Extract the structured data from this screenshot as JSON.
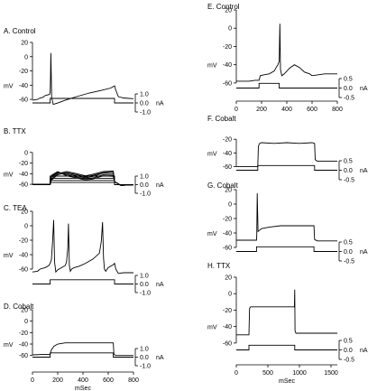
{
  "chart_data": [
    {
      "id": "A",
      "type": "line",
      "title": "A. Control",
      "xlim": [
        0,
        800
      ],
      "ylim": [
        -70,
        20
      ],
      "ylabel": "mV",
      "yticks": [
        20,
        0,
        -20,
        -40,
        -60
      ],
      "yticklabels": [
        "20",
        "0",
        "-20",
        "-40",
        "-60"
      ],
      "series": [
        {
          "x": [
            0,
            40,
            60,
            85,
            95,
            110,
            135,
            140,
            143,
            146,
            152,
            165,
            200,
            260,
            350,
            450,
            550,
            620,
            650,
            660,
            680,
            720,
            800
          ],
          "y": [
            -61,
            -60,
            -58,
            -57,
            -55,
            -54,
            -53,
            -50,
            -30,
            5,
            -58,
            -67,
            -65,
            -61,
            -56,
            -51,
            -47,
            -44,
            -41,
            -47,
            -56,
            -58,
            -59
          ]
        }
      ],
      "current": {
        "ticklabels": [
          "1.0",
          "0.0",
          "nA",
          "-1.0"
        ],
        "pulse": [
          140,
          650
        ],
        "level": 0.5
      }
    },
    {
      "id": "B",
      "type": "line",
      "title": "B. TTX",
      "xlim": [
        0,
        800
      ],
      "ylim": [
        -70,
        20
      ],
      "ylabel": "mV",
      "yticks": [
        0,
        -20,
        -40,
        -60
      ],
      "yticklabels": [
        "0",
        "-20",
        "-40",
        "-60"
      ],
      "series": [
        {
          "x": [
            0,
            140,
            150,
            200,
            270,
            350,
            420,
            480,
            560,
            640,
            650,
            700,
            800
          ],
          "y": [
            -60,
            -60,
            -52,
            -42,
            -38,
            -42,
            -46,
            -43,
            -38,
            -37,
            -55,
            -62,
            -61
          ]
        },
        {
          "x": [
            0,
            140,
            150,
            200,
            270,
            350,
            420,
            480,
            560,
            640,
            650,
            700,
            800
          ],
          "y": [
            -60,
            -60,
            -50,
            -40,
            -36,
            -40,
            -44,
            -41,
            -36,
            -35,
            -55,
            -62,
            -61
          ]
        },
        {
          "x": [
            0,
            140,
            150,
            200,
            270,
            350,
            420,
            480,
            560,
            640,
            650,
            700,
            800
          ],
          "y": [
            -60,
            -60,
            -47,
            -38,
            -40,
            -44,
            -48,
            -45,
            -39,
            -40,
            -55,
            -62,
            -61
          ]
        },
        {
          "x": [
            0,
            140,
            150,
            200,
            270,
            350,
            420,
            480,
            560,
            640,
            650,
            700,
            800
          ],
          "y": [
            -60,
            -60,
            -45,
            -37,
            -42,
            -46,
            -50,
            -48,
            -42,
            -43,
            -55,
            -62,
            -61
          ]
        },
        {
          "x": [
            0,
            140,
            150,
            200,
            270,
            350,
            420,
            480,
            560,
            640,
            650,
            700,
            800
          ],
          "y": [
            -60,
            -60,
            -43,
            -36,
            -44,
            -48,
            -52,
            -50,
            -44,
            -45,
            -55,
            -62,
            -61
          ]
        }
      ],
      "current": {
        "ticklabels": [
          "1.0",
          "0.0",
          "nA",
          "-1.0"
        ],
        "pulse": [
          140,
          650
        ],
        "levels": [
          0.25,
          0.5,
          0.75,
          1.0
        ]
      }
    },
    {
      "id": "C",
      "type": "line",
      "title": "C. TEA",
      "xlim": [
        0,
        800
      ],
      "ylim": [
        -70,
        20
      ],
      "ylabel": "mV",
      "yticks": [
        20,
        0,
        -20,
        -40,
        -60
      ],
      "yticklabels": [
        "20",
        "0",
        "-20",
        "-40",
        "-60"
      ],
      "series": [
        {
          "x": [
            0,
            40,
            60,
            100,
            130,
            140,
            150,
            160,
            168,
            175,
            185,
            200,
            230,
            260,
            270,
            280,
            285,
            292,
            300,
            310,
            330,
            370,
            420,
            480,
            530,
            545,
            555,
            563,
            570,
            580,
            600,
            640,
            650,
            660,
            680,
            720,
            800
          ],
          "y": [
            -64,
            -63,
            -60,
            -58,
            -55,
            -52,
            -47,
            -20,
            8,
            -50,
            -64,
            -61,
            -58,
            -55,
            -50,
            -30,
            3,
            -55,
            -63,
            -60,
            -58,
            -56,
            -52,
            -46,
            -38,
            -22,
            5,
            -45,
            -60,
            -63,
            -58,
            -54,
            -52,
            -60,
            -66,
            -65,
            -65
          ]
        }
      ],
      "current": {
        "ticklabels": [
          "1.0",
          "0.0",
          "nA",
          "-1.0"
        ],
        "pulse": [
          140,
          650
        ],
        "level": 0.5
      }
    },
    {
      "id": "D",
      "type": "line",
      "title": "D. Cobalt",
      "xlim": [
        0,
        800
      ],
      "ylim": [
        -70,
        20
      ],
      "ylabel": "mV",
      "yticks": [
        20,
        0,
        -20,
        -40,
        -60
      ],
      "yticklabels": [
        "20",
        "0",
        "-20",
        "-40",
        "-60"
      ],
      "xticks": [
        0,
        200,
        400,
        600,
        800
      ],
      "xticklabels": [
        "0",
        "200",
        "400",
        "600",
        "800"
      ],
      "xlabel": "mSec",
      "series": [
        {
          "x": [
            0,
            100,
            140,
            150,
            170,
            200,
            260,
            350,
            450,
            550,
            630,
            640,
            645,
            660,
            700,
            800
          ],
          "y": [
            -59,
            -58,
            -58,
            -50,
            -44,
            -40,
            -38,
            -38,
            -38,
            -38,
            -38,
            -38,
            -58,
            -60,
            -60,
            -60
          ]
        }
      ],
      "current": {
        "ticklabels": [
          "1.0",
          "0.0",
          "nA",
          "-1.0"
        ],
        "pulse": [
          140,
          640
        ],
        "level": 0.5
      }
    },
    {
      "id": "E",
      "type": "line",
      "title": "E. Control",
      "xlim": [
        0,
        800
      ],
      "ylim": [
        -70,
        20
      ],
      "ylabel": "mV",
      "yticks": [
        20,
        0,
        -20,
        -40,
        -60
      ],
      "yticklabels": [
        "20",
        "0",
        "-20",
        "-40",
        "-60"
      ],
      "xticks": [
        0,
        200,
        400,
        600,
        800
      ],
      "xticklabels": [
        "0",
        "200",
        "400",
        "600",
        "800"
      ],
      "series": [
        {
          "x": [
            0,
            50,
            100,
            150,
            180,
            190,
            220,
            260,
            300,
            320,
            330,
            340,
            345,
            350,
            360,
            380,
            420,
            460,
            500,
            540,
            580,
            600,
            650,
            700,
            800
          ],
          "y": [
            -58,
            -58,
            -58,
            -57,
            -57,
            -52,
            -51,
            -50,
            -47,
            -42,
            -40,
            -36,
            5,
            -45,
            -52,
            -50,
            -44,
            -40,
            -43,
            -48,
            -50,
            -52,
            -51,
            -50,
            -50
          ]
        }
      ],
      "current": {
        "ticklabels": [
          "0.5",
          "0.0",
          "nA",
          "-0.5"
        ],
        "pulse": [
          180,
          340
        ],
        "level": 0.25
      }
    },
    {
      "id": "F",
      "type": "line",
      "title": "F. Cobalt",
      "xlim": [
        0,
        800
      ],
      "ylim": [
        -70,
        20
      ],
      "ylabel": "mV",
      "yticks": [
        -20,
        -40,
        -60
      ],
      "yticklabels": [
        "-20",
        "-40",
        "-60"
      ],
      "series": [
        {
          "x": [
            0,
            100,
            170,
            175,
            185,
            200,
            300,
            400,
            500,
            600,
            620,
            625,
            640,
            700,
            800
          ],
          "y": [
            -60,
            -60,
            -60,
            -30,
            -26,
            -25,
            -26,
            -25,
            -26,
            -25,
            -26,
            -50,
            -52,
            -52,
            -52
          ]
        }
      ],
      "current": {
        "ticklabels": [
          "0.5",
          "0.0",
          "nA",
          "-0.5"
        ],
        "pulse": [
          170,
          620
        ],
        "level": 0.25
      }
    },
    {
      "id": "G",
      "type": "line",
      "title": "G. Cobalt",
      "xlim": [
        0,
        800
      ],
      "ylim": [
        -70,
        20
      ],
      "ylabel": "mV",
      "yticks": [
        20,
        0,
        -20,
        -40,
        -60
      ],
      "yticklabels": [
        "20",
        "0",
        "-20",
        "-40",
        "-60"
      ],
      "series": [
        {
          "x": [
            0,
            100,
            160,
            162,
            166,
            172,
            185,
            200,
            260,
            350,
            450,
            520,
            600,
            615,
            620,
            640,
            700,
            800
          ],
          "y": [
            -50,
            -50,
            -50,
            -42,
            15,
            -38,
            -36,
            -34,
            -32,
            -30,
            -30,
            -30,
            -30,
            -30,
            -49,
            -51,
            -51,
            -51
          ]
        }
      ],
      "current": {
        "ticklabels": [
          "0.5",
          "0.0",
          "nA",
          "-0.5"
        ],
        "pulse": [
          160,
          615
        ],
        "level": 0.25
      }
    },
    {
      "id": "H",
      "type": "line",
      "title": "H. TTX",
      "xlim": [
        0,
        1600
      ],
      "ylim": [
        -70,
        20
      ],
      "ylabel": "mV",
      "yticks": [
        20,
        0,
        -20,
        -40,
        -60
      ],
      "yticklabels": [
        "20",
        "0",
        "-20",
        "-40",
        "-60"
      ],
      "xticks": [
        0,
        500,
        1000,
        1500
      ],
      "xticklabels": [
        "0",
        "500",
        "1000",
        "1500"
      ],
      "xlabel": "mSec",
      "series": [
        {
          "x": [
            0,
            100,
            200,
            210,
            225,
            240,
            400,
            600,
            800,
            920,
            925,
            930,
            945,
            1000,
            1200,
            1400,
            1600
          ],
          "y": [
            -50,
            -50,
            -50,
            -18,
            -16,
            -16,
            -16,
            -16,
            -16,
            -16,
            5,
            -45,
            -48,
            -48,
            -48,
            -48,
            -48
          ]
        }
      ],
      "current": {
        "ticklabels": [
          "0.5",
          "0.0",
          "nA",
          "-0.5"
        ],
        "pulse": [
          200,
          925
        ],
        "level": 0.25
      }
    }
  ]
}
